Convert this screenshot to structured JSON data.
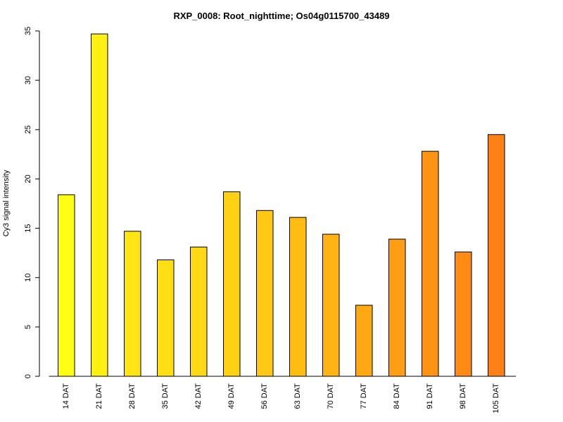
{
  "chart_data": {
    "type": "bar",
    "title": "RXP_0008: Root_nighttime; Os04g0115700_43489",
    "xlabel": "",
    "ylabel": "Cy3 signal intensity",
    "categories": [
      "14 DAT",
      "21 DAT",
      "28 DAT",
      "35 DAT",
      "42 DAT",
      "49 DAT",
      "56 DAT",
      "63 DAT",
      "70 DAT",
      "77 DAT",
      "84 DAT",
      "91 DAT",
      "98 DAT",
      "105 DAT"
    ],
    "values": [
      18.4,
      34.7,
      14.7,
      11.8,
      13.1,
      18.7,
      16.8,
      16.1,
      14.4,
      7.2,
      13.9,
      22.8,
      12.6,
      24.5
    ],
    "ylim": [
      0,
      35
    ],
    "yticks": [
      0,
      5,
      10,
      15,
      20,
      25,
      30,
      35
    ],
    "grid": false,
    "legend": "none",
    "colors": [
      "#ffff14",
      "#fff014",
      "#ffe514",
      "#ffdf14",
      "#ffd914",
      "#ffd114",
      "#ffc814",
      "#ffbd14",
      "#ffb314",
      "#ffa814",
      "#ff9d14",
      "#ff9414",
      "#ff8a14",
      "#ff8014"
    ]
  }
}
